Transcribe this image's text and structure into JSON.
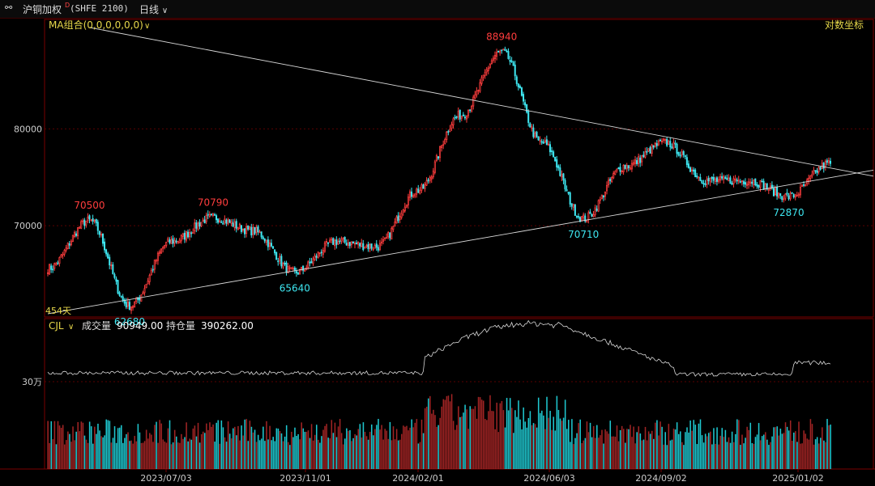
{
  "header": {
    "link_icon": "link-icon",
    "instrument": "沪铜加权",
    "superscript": "D",
    "code": "(SHFE 2100)",
    "period": "日线",
    "period_icon": "chevron-down-icon"
  },
  "price_panel": {
    "indicator": "MA组合(0,0,0,0,0,0)",
    "scale_mode": "对数坐标",
    "days_label": "454天",
    "y_ticks": [
      "80000",
      "70000"
    ]
  },
  "volume_panel": {
    "indicator": "CJL",
    "volume_label": "成交量",
    "volume_value": "90949.00",
    "oi_label": "持仓量",
    "oi_value": "390262.00",
    "y_tick": "30万"
  },
  "colors": {
    "up": "#ff3d3d",
    "down": "#3ee6f0",
    "vol_up": "#a02424",
    "vol_down": "#1fc7cf",
    "line": "#d8d8d8",
    "grid": "#5a0000"
  },
  "chart_data": {
    "type": "candlestick",
    "x_ticks": [
      "2023/07/03",
      "2023/11/01",
      "2024/02/01",
      "2024/06/03",
      "2024/09/02",
      "2025/01/02"
    ],
    "y_scale": "log",
    "ylim": [
      62000,
      92000
    ],
    "price_anchors": [
      {
        "x": "2023/03",
        "close": 66000
      },
      {
        "x": "2023/04",
        "close": 70500
      },
      {
        "x": "2023/05",
        "close": 62680
      },
      {
        "x": "2023/06",
        "close": 68500
      },
      {
        "x": "2023/07",
        "close": 70790
      },
      {
        "x": "2023/09",
        "close": 69500
      },
      {
        "x": "2023/10",
        "close": 65640
      },
      {
        "x": "2023/12",
        "close": 68500
      },
      {
        "x": "2024/02",
        "close": 68000
      },
      {
        "x": "2024/03",
        "close": 73500
      },
      {
        "x": "2024/04",
        "close": 81500
      },
      {
        "x": "2024/05",
        "close": 88940
      },
      {
        "x": "2024/06",
        "close": 78500
      },
      {
        "x": "2024/08",
        "close": 70710
      },
      {
        "x": "2024/09",
        "close": 76000
      },
      {
        "x": "2024/10",
        "close": 78500
      },
      {
        "x": "2024/11",
        "close": 74500
      },
      {
        "x": "2024/12",
        "close": 74500
      },
      {
        "x": "2025/01",
        "close": 72870
      },
      {
        "x": "2025/02",
        "close": 76300
      }
    ],
    "annotations": [
      {
        "label": "70500",
        "kind": "high"
      },
      {
        "label": "62680",
        "kind": "low"
      },
      {
        "label": "70790",
        "kind": "high"
      },
      {
        "label": "65640",
        "kind": "low"
      },
      {
        "label": "88940",
        "kind": "high"
      },
      {
        "label": "70710",
        "kind": "low"
      },
      {
        "label": "72870",
        "kind": "low"
      }
    ],
    "trendlines": [
      {
        "name": "resistance",
        "from": {
          "x": "2023/04",
          "price": 92000
        },
        "to": {
          "x": "2025/02",
          "price": 75800
        }
      },
      {
        "name": "support",
        "from": {
          "x": "2023/03",
          "price": 62000
        },
        "to": {
          "x": "2025/02",
          "price": 74800
        }
      }
    ],
    "volume": {
      "ylim": [
        0,
        500000
      ],
      "tick": "30万",
      "typical": 150000,
      "peak": 290000
    },
    "open_interest": {
      "ylim": [
        0,
        500000
      ],
      "start": 330000,
      "peak": 500000,
      "end": 390262
    }
  }
}
